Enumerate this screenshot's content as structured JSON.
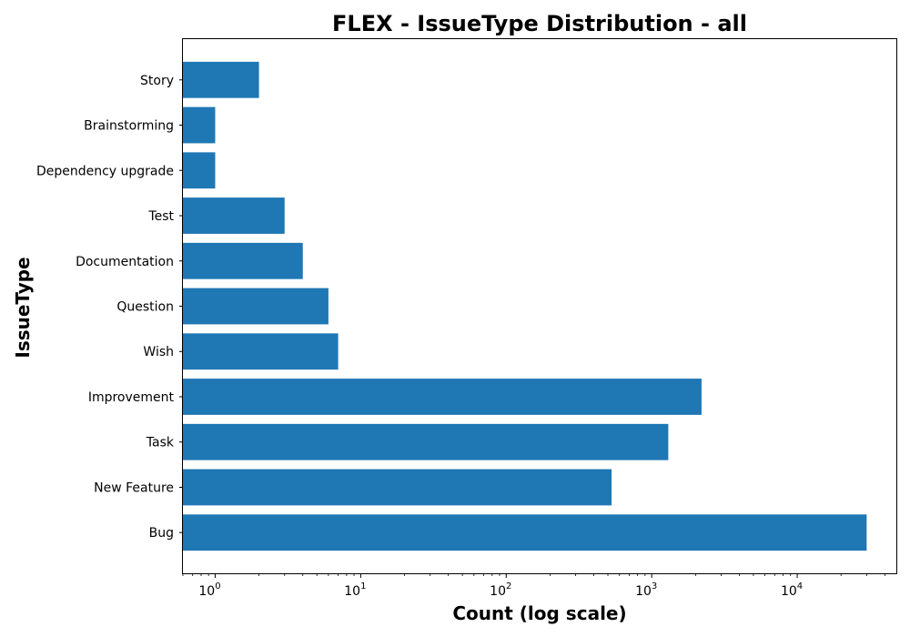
{
  "chart_data": {
    "type": "bar",
    "orientation": "horizontal",
    "title": "FLEX - IssueType Distribution - all",
    "xlabel": "Count (log scale)",
    "ylabel": "IssueType",
    "xscale": "log",
    "xlim": [
      0.6,
      48000
    ],
    "grid": false,
    "color": "#1f77b4",
    "x_ticks": [
      {
        "base": "10",
        "exp": "0",
        "value": 1
      },
      {
        "base": "10",
        "exp": "1",
        "value": 10
      },
      {
        "base": "10",
        "exp": "2",
        "value": 100
      },
      {
        "base": "10",
        "exp": "3",
        "value": 1000
      },
      {
        "base": "10",
        "exp": "4",
        "value": 10000
      }
    ],
    "categories": [
      "Bug",
      "New Feature",
      "Task",
      "Improvement",
      "Wish",
      "Question",
      "Documentation",
      "Test",
      "Dependency upgrade",
      "Brainstorming",
      "Story"
    ],
    "values": [
      30000,
      530,
      1300,
      2200,
      7,
      6,
      4,
      3,
      1,
      1,
      2
    ]
  }
}
